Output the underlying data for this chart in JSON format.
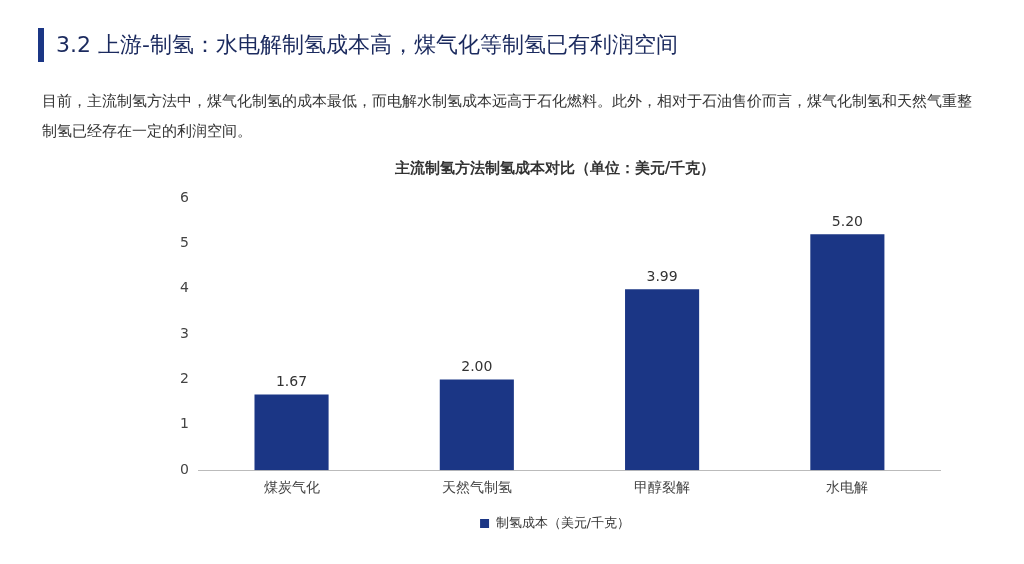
{
  "chart_data": {
    "type": "bar",
    "title": "主流制氢方法制氢成本对比（单位：美元/千克）",
    "annotations": [
      "3.2 上游-制氢：水电解制氢成本高，煤气化等制氢已有利润空间",
      "目前，主流制氢方法中，煤气化制氢的成本最低，而电解水制氢成本远高于石化燃料。此外，相对于石油售价而言，煤气化制氢和天然气重整制氢已经存在一定的利润空间。"
    ],
    "categories": [
      "煤炭气化",
      "天然气制氢",
      "甲醇裂解",
      "水电解"
    ],
    "series": [
      {
        "name": "制氢成本（美元/千克）",
        "color": "#1b3685",
        "values": [
          1.67,
          2.0,
          3.99,
          5.2
        ]
      }
    ],
    "value_labels": [
      "1.67",
      "2.00",
      "3.99",
      "5.20"
    ],
    "ylim": [
      0,
      6
    ],
    "yticks": [
      0,
      1,
      2,
      3,
      4,
      5,
      6
    ],
    "grid": false,
    "legend": "bottom"
  }
}
